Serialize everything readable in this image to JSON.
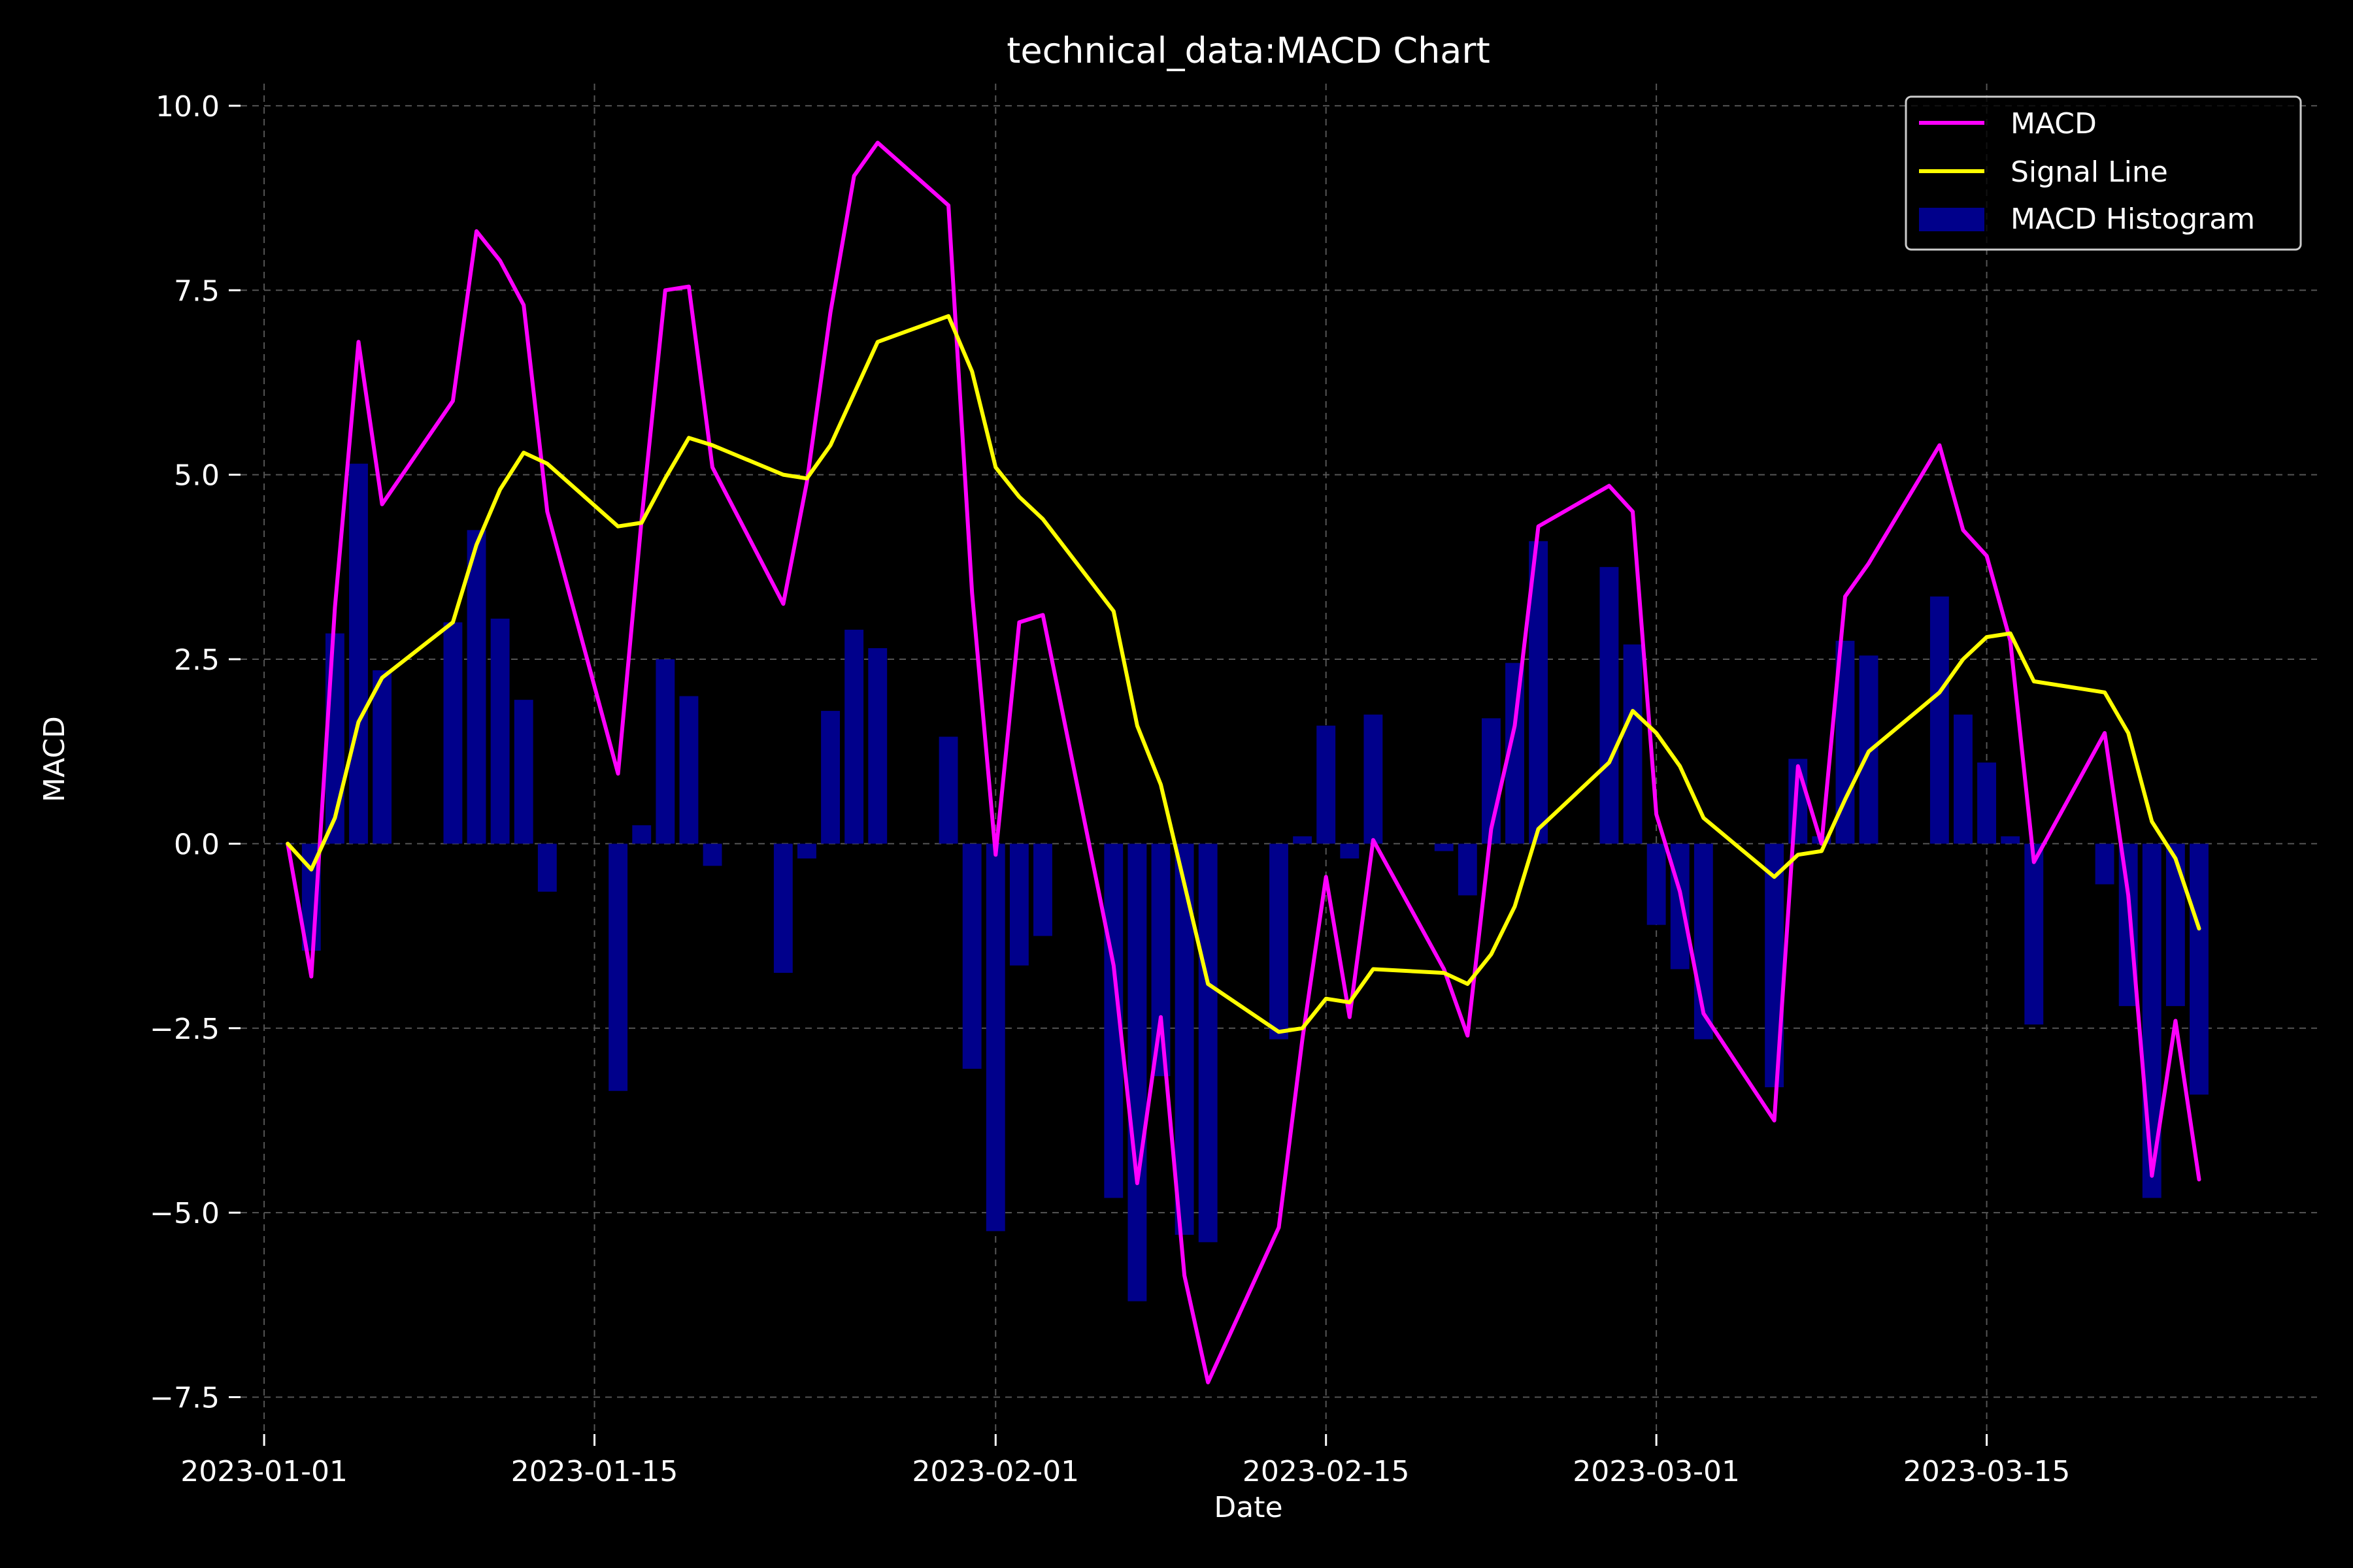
{
  "chart_data": {
    "type": "line",
    "title": "technical_data:MACD Chart",
    "xlabel": "Date",
    "ylabel": "MACD",
    "x_ticks": [
      "2023-01-01",
      "2023-01-15",
      "2023-02-01",
      "2023-02-15",
      "2023-03-01",
      "2023-03-15"
    ],
    "y_ticks": [
      "−7.5",
      "−5.0",
      "−2.5",
      "0.0",
      "2.5",
      "5.0",
      "7.5",
      "10.0"
    ],
    "y_tick_values": [
      -7.5,
      -5.0,
      -2.5,
      0.0,
      2.5,
      5.0,
      7.5,
      10.0
    ],
    "xlim": [
      "2022-12-31",
      "2023-03-29"
    ],
    "ylim": [
      -8.0,
      10.3
    ],
    "grid": true,
    "legend_position": "top-right",
    "colors": {
      "background": "#000000",
      "macd": "#ff00ff",
      "signal": "#ffff00",
      "histogram": "#00008b",
      "grid": "#555555",
      "text": "#ffffff"
    },
    "series": [
      {
        "name": "MACD",
        "kind": "line",
        "color": "#ff00ff",
        "points": [
          [
            "2023-01-02",
            0.0
          ],
          [
            "2023-01-03",
            -1.8
          ],
          [
            "2023-01-04",
            3.2
          ],
          [
            "2023-01-05",
            6.8
          ],
          [
            "2023-01-06",
            4.6
          ],
          [
            "2023-01-09",
            6.0
          ],
          [
            "2023-01-10",
            8.3
          ],
          [
            "2023-01-11",
            7.9
          ],
          [
            "2023-01-12",
            7.3
          ],
          [
            "2023-01-13",
            4.5
          ],
          [
            "2023-01-16",
            0.95
          ],
          [
            "2023-01-17",
            4.4
          ],
          [
            "2023-01-18",
            7.5
          ],
          [
            "2023-01-19",
            7.55
          ],
          [
            "2023-01-20",
            5.1
          ],
          [
            "2023-01-23",
            3.25
          ],
          [
            "2023-01-24",
            4.9
          ],
          [
            "2023-01-25",
            7.2
          ],
          [
            "2023-01-26",
            9.05
          ],
          [
            "2023-01-27",
            9.5
          ],
          [
            "2023-01-30",
            8.65
          ],
          [
            "2023-01-31",
            3.4
          ],
          [
            "2023-02-01",
            -0.15
          ],
          [
            "2023-02-02",
            3.0
          ],
          [
            "2023-02-03",
            3.1
          ],
          [
            "2023-02-06",
            -1.65
          ],
          [
            "2023-02-07",
            -4.6
          ],
          [
            "2023-02-08",
            -2.35
          ],
          [
            "2023-02-09",
            -5.85
          ],
          [
            "2023-02-10",
            -7.3
          ],
          [
            "2023-02-13",
            -5.2
          ],
          [
            "2023-02-14",
            -2.65
          ],
          [
            "2023-02-15",
            -0.45
          ],
          [
            "2023-02-16",
            -2.35
          ],
          [
            "2023-02-17",
            0.05
          ],
          [
            "2023-02-20",
            -1.7
          ],
          [
            "2023-02-21",
            -2.6
          ],
          [
            "2023-02-22",
            0.2
          ],
          [
            "2023-02-23",
            1.6
          ],
          [
            "2023-02-24",
            4.3
          ],
          [
            "2023-02-27",
            4.85
          ],
          [
            "2023-02-28",
            4.5
          ],
          [
            "2023-03-01",
            0.4
          ],
          [
            "2023-03-02",
            -0.65
          ],
          [
            "2023-03-03",
            -2.3
          ],
          [
            "2023-03-06",
            -3.75
          ],
          [
            "2023-03-07",
            1.05
          ],
          [
            "2023-03-08",
            0.0
          ],
          [
            "2023-03-09",
            3.35
          ],
          [
            "2023-03-10",
            3.8
          ],
          [
            "2023-03-13",
            5.4
          ],
          [
            "2023-03-14",
            4.25
          ],
          [
            "2023-03-15",
            3.9
          ],
          [
            "2023-03-16",
            2.75
          ],
          [
            "2023-03-17",
            -0.25
          ],
          [
            "2023-03-20",
            1.5
          ],
          [
            "2023-03-21",
            -0.7
          ],
          [
            "2023-03-22",
            -4.5
          ],
          [
            "2023-03-23",
            -2.4
          ],
          [
            "2023-03-24",
            -4.55
          ]
        ]
      },
      {
        "name": "Signal Line",
        "kind": "line",
        "color": "#ffff00",
        "points": [
          [
            "2023-01-02",
            0.0
          ],
          [
            "2023-01-03",
            -0.35
          ],
          [
            "2023-01-04",
            0.35
          ],
          [
            "2023-01-05",
            1.65
          ],
          [
            "2023-01-06",
            2.25
          ],
          [
            "2023-01-09",
            3.0
          ],
          [
            "2023-01-10",
            4.05
          ],
          [
            "2023-01-11",
            4.8
          ],
          [
            "2023-01-12",
            5.3
          ],
          [
            "2023-01-13",
            5.15
          ],
          [
            "2023-01-16",
            4.3
          ],
          [
            "2023-01-17",
            4.35
          ],
          [
            "2023-01-18",
            4.95
          ],
          [
            "2023-01-19",
            5.5
          ],
          [
            "2023-01-20",
            5.4
          ],
          [
            "2023-01-23",
            5.0
          ],
          [
            "2023-01-24",
            4.95
          ],
          [
            "2023-01-25",
            5.4
          ],
          [
            "2023-01-26",
            6.1
          ],
          [
            "2023-01-27",
            6.8
          ],
          [
            "2023-01-30",
            7.15
          ],
          [
            "2023-01-31",
            6.4
          ],
          [
            "2023-02-01",
            5.1
          ],
          [
            "2023-02-02",
            4.7
          ],
          [
            "2023-02-03",
            4.4
          ],
          [
            "2023-02-06",
            3.15
          ],
          [
            "2023-02-07",
            1.6
          ],
          [
            "2023-02-08",
            0.8
          ],
          [
            "2023-02-09",
            -0.55
          ],
          [
            "2023-02-10",
            -1.9
          ],
          [
            "2023-02-13",
            -2.55
          ],
          [
            "2023-02-14",
            -2.5
          ],
          [
            "2023-02-15",
            -2.1
          ],
          [
            "2023-02-16",
            -2.15
          ],
          [
            "2023-02-17",
            -1.7
          ],
          [
            "2023-02-20",
            -1.75
          ],
          [
            "2023-02-21",
            -1.9
          ],
          [
            "2023-02-22",
            -1.5
          ],
          [
            "2023-02-23",
            -0.85
          ],
          [
            "2023-02-24",
            0.2
          ],
          [
            "2023-02-27",
            1.1
          ],
          [
            "2023-02-28",
            1.8
          ],
          [
            "2023-03-01",
            1.5
          ],
          [
            "2023-03-02",
            1.05
          ],
          [
            "2023-03-03",
            0.35
          ],
          [
            "2023-03-06",
            -0.45
          ],
          [
            "2023-03-07",
            -0.15
          ],
          [
            "2023-03-08",
            -0.1
          ],
          [
            "2023-03-09",
            0.6
          ],
          [
            "2023-03-10",
            1.25
          ],
          [
            "2023-03-13",
            2.05
          ],
          [
            "2023-03-14",
            2.5
          ],
          [
            "2023-03-15",
            2.8
          ],
          [
            "2023-03-16",
            2.85
          ],
          [
            "2023-03-17",
            2.2
          ],
          [
            "2023-03-20",
            2.05
          ],
          [
            "2023-03-21",
            1.5
          ],
          [
            "2023-03-22",
            0.3
          ],
          [
            "2023-03-23",
            -0.2
          ],
          [
            "2023-03-24",
            -1.15
          ]
        ]
      },
      {
        "name": "MACD Histogram",
        "kind": "bar",
        "color": "#00008b",
        "points": [
          [
            "2023-01-02",
            0.0
          ],
          [
            "2023-01-03",
            -1.45
          ],
          [
            "2023-01-04",
            2.85
          ],
          [
            "2023-01-05",
            5.15
          ],
          [
            "2023-01-06",
            2.35
          ],
          [
            "2023-01-09",
            3.0
          ],
          [
            "2023-01-10",
            4.25
          ],
          [
            "2023-01-11",
            3.05
          ],
          [
            "2023-01-12",
            1.95
          ],
          [
            "2023-01-13",
            -0.65
          ],
          [
            "2023-01-16",
            -3.35
          ],
          [
            "2023-01-17",
            0.25
          ],
          [
            "2023-01-18",
            2.5
          ],
          [
            "2023-01-19",
            2.0
          ],
          [
            "2023-01-20",
            -0.3
          ],
          [
            "2023-01-23",
            -1.75
          ],
          [
            "2023-01-24",
            -0.2
          ],
          [
            "2023-01-25",
            1.8
          ],
          [
            "2023-01-26",
            2.9
          ],
          [
            "2023-01-27",
            2.65
          ],
          [
            "2023-01-30",
            1.45
          ],
          [
            "2023-01-31",
            -3.05
          ],
          [
            "2023-02-01",
            -5.25
          ],
          [
            "2023-02-02",
            -1.65
          ],
          [
            "2023-02-03",
            -1.25
          ],
          [
            "2023-02-06",
            -4.8
          ],
          [
            "2023-02-07",
            -6.2
          ],
          [
            "2023-02-08",
            -3.15
          ],
          [
            "2023-02-09",
            -5.3
          ],
          [
            "2023-02-10",
            -5.4
          ],
          [
            "2023-02-13",
            -2.65
          ],
          [
            "2023-02-14",
            0.1
          ],
          [
            "2023-02-15",
            1.6
          ],
          [
            "2023-02-16",
            -0.2
          ],
          [
            "2023-02-17",
            1.75
          ],
          [
            "2023-02-20",
            -0.1
          ],
          [
            "2023-02-21",
            -0.7
          ],
          [
            "2023-02-22",
            1.7
          ],
          [
            "2023-02-23",
            2.45
          ],
          [
            "2023-02-24",
            4.1
          ],
          [
            "2023-02-27",
            3.75
          ],
          [
            "2023-02-28",
            2.7
          ],
          [
            "2023-03-01",
            -1.1
          ],
          [
            "2023-03-02",
            -1.7
          ],
          [
            "2023-03-03",
            -2.65
          ],
          [
            "2023-03-06",
            -3.3
          ],
          [
            "2023-03-07",
            1.15
          ],
          [
            "2023-03-08",
            0.1
          ],
          [
            "2023-03-09",
            2.75
          ],
          [
            "2023-03-10",
            2.55
          ],
          [
            "2023-03-13",
            3.35
          ],
          [
            "2023-03-14",
            1.75
          ],
          [
            "2023-03-15",
            1.1
          ],
          [
            "2023-03-16",
            0.1
          ],
          [
            "2023-03-17",
            -2.45
          ],
          [
            "2023-03-20",
            -0.55
          ],
          [
            "2023-03-21",
            -2.2
          ],
          [
            "2023-03-22",
            -4.8
          ],
          [
            "2023-03-23",
            -2.2
          ],
          [
            "2023-03-24",
            -3.4
          ]
        ]
      }
    ]
  }
}
